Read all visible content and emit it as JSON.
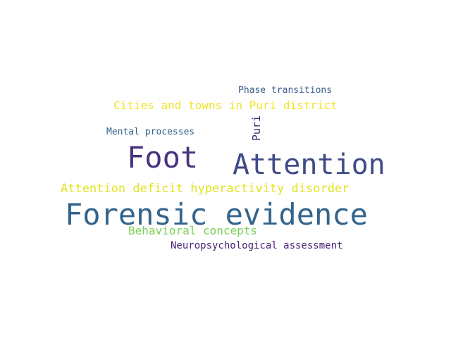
{
  "words": [
    {
      "text": "Forensic evidence",
      "color": "#33648c"
    },
    {
      "text": "Attention",
      "color": "#3f4a88"
    },
    {
      "text": "Foot",
      "color": "#47337e"
    },
    {
      "text": "Attention deficit hyperactivity disorder",
      "color": "#e3e31f"
    },
    {
      "text": "Cities and towns in Puri district",
      "color": "#f0e42a"
    },
    {
      "text": "Behavioral concepts",
      "color": "#7ad151"
    },
    {
      "text": "Neuropsychological assessment",
      "color": "#482475"
    },
    {
      "text": "Phase transitions",
      "color": "#3b5e8a"
    },
    {
      "text": "Mental processes",
      "color": "#34618d"
    },
    {
      "text": "Puri",
      "color": "#46256f"
    }
  ]
}
